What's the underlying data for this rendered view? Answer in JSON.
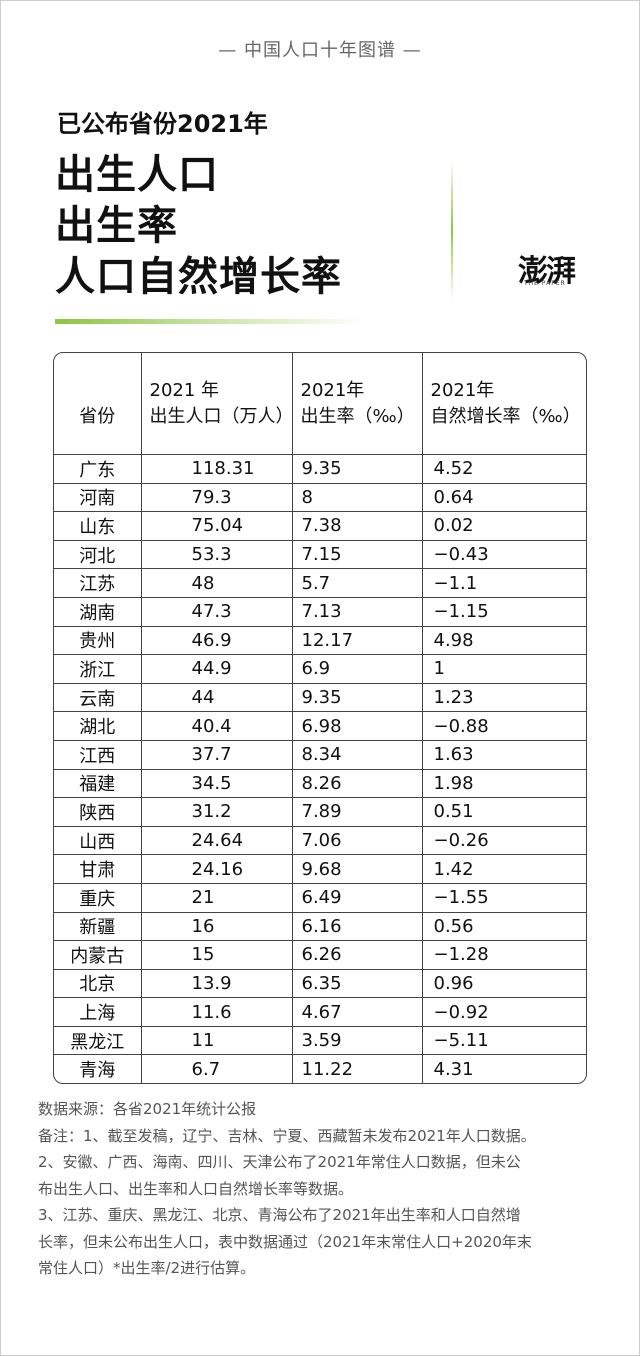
{
  "header": {
    "series": "中国人口十年图谱",
    "subtitle": "已公布省份2021年",
    "title_lines": [
      "出生人口",
      "出生率",
      "人口自然增长率"
    ],
    "logo": "澎湃",
    "logo_sub": "THE PAPER"
  },
  "table": {
    "header": [
      [
        "省份"
      ],
      [
        "2021 年",
        "出生人口（万人）"
      ],
      [
        "2021年",
        "出生率（‰）"
      ],
      [
        "2021年",
        "自然增长率（‰）"
      ]
    ],
    "rows": [
      [
        "广东",
        "118.31",
        "9.35",
        "4.52"
      ],
      [
        "河南",
        "79.3",
        "8",
        "0.64"
      ],
      [
        "山东",
        "75.04",
        "7.38",
        "0.02"
      ],
      [
        "河北",
        "53.3",
        "7.15",
        "−0.43"
      ],
      [
        "江苏",
        "48",
        "5.7",
        "−1.1"
      ],
      [
        "湖南",
        "47.3",
        "7.13",
        "−1.15"
      ],
      [
        "贵州",
        "46.9",
        "12.17",
        "4.98"
      ],
      [
        "浙江",
        "44.9",
        "6.9",
        "1"
      ],
      [
        "云南",
        "44",
        "9.35",
        "1.23"
      ],
      [
        "湖北",
        "40.4",
        "6.98",
        "−0.88"
      ],
      [
        "江西",
        "37.7",
        "8.34",
        "1.63"
      ],
      [
        "福建",
        "34.5",
        "8.26",
        "1.98"
      ],
      [
        "陕西",
        "31.2",
        "7.89",
        "0.51"
      ],
      [
        "山西",
        "24.64",
        "7.06",
        "−0.26"
      ],
      [
        "甘肃",
        "24.16",
        "9.68",
        "1.42"
      ],
      [
        "重庆",
        "21",
        "6.49",
        "−1.55"
      ],
      [
        "新疆",
        "16",
        "6.16",
        "0.56"
      ],
      [
        "内蒙古",
        "15",
        "6.26",
        "−1.28"
      ],
      [
        "北京",
        "13.9",
        "6.35",
        "0.96"
      ],
      [
        "上海",
        "11.6",
        "4.67",
        "−0.92"
      ],
      [
        "黑龙江",
        "11",
        "3.59",
        "−5.11"
      ],
      [
        "青海",
        "6.7",
        "11.22",
        "4.31"
      ]
    ]
  },
  "notes": [
    "数据来源：各省2021年统计公报",
    "备注：1、截至发稿，辽宁、吉林、宁夏、西藏暂未发布2021年人口数据。",
    "2、安徽、广西、海南、四川、天津公布了2021年常住人口数据，但未公",
    "布出生人口、出生率和人口自然增长率等数据。",
    "3、江苏、重庆、黑龙江、北京、青海公布了2021年出生率和人口自然增",
    "长率，但未公布出生人口，表中数据通过（2021年末常住人口+2020年末",
    "常住人口）*出生率/2进行估算。"
  ]
}
